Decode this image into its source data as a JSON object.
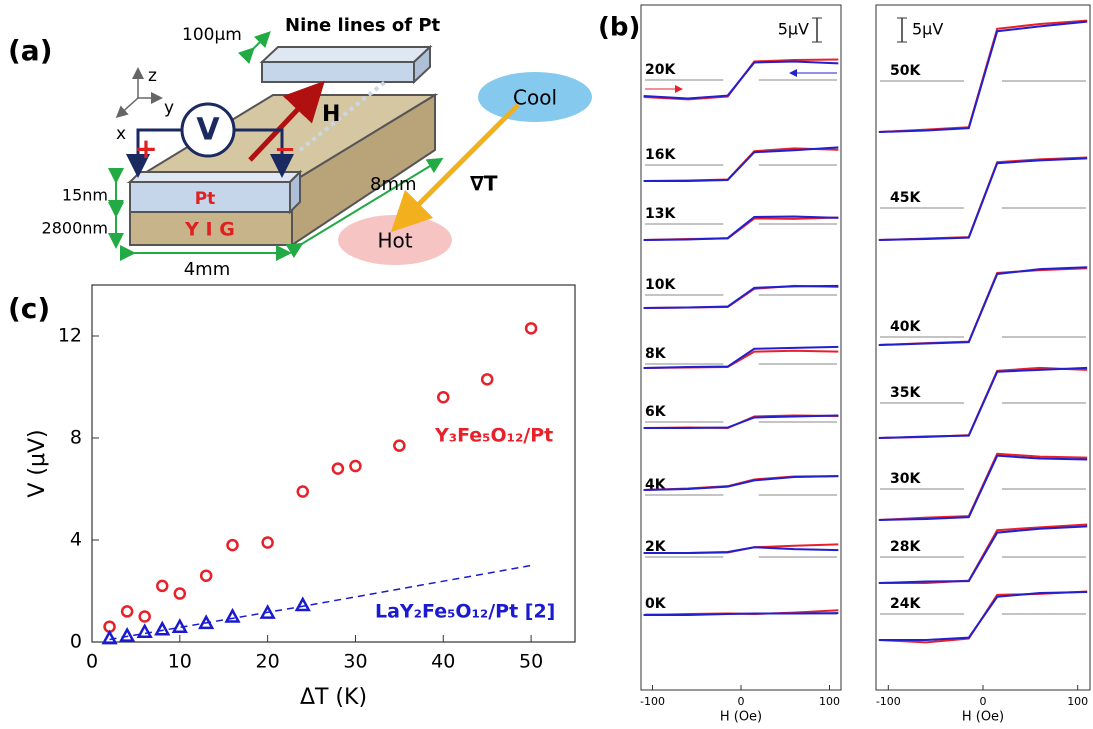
{
  "diagram": {
    "panel_label": "(a)",
    "width": "100μm",
    "pt_lines": "Nine lines of Pt",
    "axis_z": "z",
    "axis_y": "y",
    "axis_x": "x",
    "voltmeter": "V",
    "field": "H",
    "plus": "+",
    "minus": "−",
    "pt_thickness": "15nm",
    "yig_thickness": "2800nm",
    "pt_layer": "Pt",
    "yig_layer": "Y I G",
    "sample_width": "4mm",
    "sample_length": "8mm",
    "gradient": "∇T",
    "cool": "Cool",
    "hot": "Hot"
  },
  "chart_data": [
    {
      "type": "line",
      "panel_label": "(b)",
      "scale_bar": {
        "value": 5,
        "label": "5μV"
      },
      "xlabel": "H (Oe)",
      "x": [
        -110,
        -60,
        -15,
        15,
        60,
        110
      ],
      "xlim": [
        -113,
        113
      ],
      "xticks": [
        -100,
        0,
        100
      ],
      "traces": [
        {
          "label": "20K",
          "series": [
            {
              "color": "#e8202a",
              "values": [
                0,
                -0.5,
                0.1,
                7.4,
                7.7,
                7.8
              ]
            },
            {
              "color": "#2020d0",
              "values": [
                0.2,
                -0.3,
                0.3,
                7.2,
                7.4,
                7.0
              ]
            }
          ]
        },
        {
          "label": "16K",
          "series": [
            {
              "color": "#e8202a",
              "values": [
                0,
                0.1,
                0.3,
                6.2,
                6.8,
                6.5
              ]
            },
            {
              "color": "#2020d0",
              "values": [
                0,
                0,
                0.2,
                6.0,
                6.4,
                7.0
              ]
            }
          ]
        },
        {
          "label": "13K",
          "series": [
            {
              "color": "#e8202a",
              "values": [
                0,
                0.2,
                0.3,
                4.5,
                4.4,
                4.7
              ]
            },
            {
              "color": "#2020d0",
              "values": [
                0,
                0.1,
                0.4,
                4.8,
                4.9,
                4.6
              ]
            }
          ]
        },
        {
          "label": "10K",
          "series": [
            {
              "color": "#e8202a",
              "values": [
                0,
                0.1,
                0.2,
                4.0,
                4.6,
                4.4
              ]
            },
            {
              "color": "#2020d0",
              "values": [
                0,
                0.1,
                0.3,
                4.2,
                4.5,
                4.6
              ]
            }
          ]
        },
        {
          "label": "8K",
          "series": [
            {
              "color": "#e8202a",
              "values": [
                0,
                0.1,
                0.2,
                3.4,
                3.6,
                3.4
              ]
            },
            {
              "color": "#2020d0",
              "values": [
                0,
                0.2,
                0.3,
                4.0,
                4.2,
                4.4
              ]
            }
          ]
        },
        {
          "label": "6K",
          "series": [
            {
              "color": "#e8202a",
              "values": [
                0,
                0.1,
                0,
                2.4,
                2.6,
                2.5
              ]
            },
            {
              "color": "#2020d0",
              "values": [
                0,
                0,
                0.1,
                2.2,
                2.4,
                2.6
              ]
            }
          ]
        },
        {
          "label": "4K",
          "series": [
            {
              "color": "#e8202a",
              "values": [
                0,
                0.3,
                0.8,
                2.2,
                2.8,
                2.9
              ]
            },
            {
              "color": "#2020d0",
              "values": [
                0,
                0.2,
                0.7,
                2.0,
                2.7,
                2.9
              ]
            }
          ]
        },
        {
          "label": "2K",
          "series": [
            {
              "color": "#e8202a",
              "values": [
                0,
                0,
                0.1,
                1.2,
                1.5,
                1.8
              ]
            },
            {
              "color": "#2020d0",
              "values": [
                0,
                0,
                0.2,
                1.2,
                0.8,
                0.6
              ]
            }
          ]
        },
        {
          "label": "0K",
          "series": [
            {
              "color": "#e8202a",
              "values": [
                0,
                0.2,
                0.3,
                0.2,
                0.5,
                1.0
              ]
            },
            {
              "color": "#2020d0",
              "values": [
                0,
                0,
                0.2,
                0.3,
                0.3,
                0.4
              ]
            }
          ]
        }
      ]
    },
    {
      "type": "line",
      "scale_bar": {
        "value": 5,
        "label": "5μV"
      },
      "xlabel": "H (Oe)",
      "x": [
        -110,
        -60,
        -15,
        15,
        60,
        110
      ],
      "xlim": [
        -113,
        113
      ],
      "xticks": [
        -100,
        0,
        100
      ],
      "traces": [
        {
          "label": "50K",
          "series": [
            {
              "color": "#e8202a",
              "values": [
                0,
                0.5,
                1.0,
                21.5,
                22.5,
                23.2
              ]
            },
            {
              "color": "#2020d0",
              "values": [
                0,
                0.3,
                0.8,
                21.0,
                22.0,
                23.0
              ]
            }
          ]
        },
        {
          "label": "45K",
          "series": [
            {
              "color": "#e8202a",
              "values": [
                0,
                0.3,
                0.6,
                16.2,
                16.8,
                17.2
              ]
            },
            {
              "color": "#2020d0",
              "values": [
                0,
                0.2,
                0.5,
                16.0,
                16.6,
                17.0
              ]
            }
          ]
        },
        {
          "label": "40K",
          "series": [
            {
              "color": "#e8202a",
              "values": [
                0,
                0.4,
                0.7,
                15.0,
                15.6,
                16.0
              ]
            },
            {
              "color": "#2020d0",
              "values": [
                0,
                0.3,
                0.6,
                14.8,
                15.8,
                16.2
              ]
            }
          ]
        },
        {
          "label": "35K",
          "series": [
            {
              "color": "#e8202a",
              "values": [
                0,
                0.2,
                0.6,
                14.0,
                14.6,
                14.2
              ]
            },
            {
              "color": "#2020d0",
              "values": [
                0,
                0.3,
                0.5,
                13.8,
                14.2,
                14.6
              ]
            }
          ]
        },
        {
          "label": "30K",
          "series": [
            {
              "color": "#e8202a",
              "values": [
                0,
                0.5,
                0.8,
                13.8,
                13.2,
                13.0
              ]
            },
            {
              "color": "#2020d0",
              "values": [
                0,
                0.2,
                0.6,
                13.4,
                12.8,
                12.6
              ]
            }
          ]
        },
        {
          "label": "28K",
          "series": [
            {
              "color": "#e8202a",
              "values": [
                0,
                0,
                0.5,
                11.0,
                11.6,
                12.2
              ]
            },
            {
              "color": "#2020d0",
              "values": [
                0,
                0.3,
                0.4,
                10.5,
                11.3,
                11.8
              ]
            }
          ]
        },
        {
          "label": "24K",
          "series": [
            {
              "color": "#e8202a",
              "values": [
                0,
                -0.5,
                0.3,
                9.4,
                9.6,
                10.1
              ]
            },
            {
              "color": "#2020d0",
              "values": [
                0,
                0,
                0.5,
                9.0,
                9.8,
                10.0
              ]
            }
          ]
        }
      ]
    },
    {
      "type": "scatter",
      "panel_label": "(c)",
      "xlabel": "ΔT (K)",
      "ylabel": "V (μV)",
      "xlim": [
        0,
        55
      ],
      "ylim": [
        0,
        14
      ],
      "xticks": [
        0,
        10,
        20,
        30,
        40,
        50
      ],
      "yticks": [
        0,
        4,
        8,
        12
      ],
      "series": [
        {
          "name": "Y₃Fe₅O₁₂/Pt",
          "color": "#e8202a",
          "marker": "circle",
          "x": [
            2,
            4,
            6,
            8,
            10,
            13,
            16,
            20,
            24,
            28,
            30,
            35,
            40,
            45,
            50
          ],
          "values": [
            0.6,
            1.2,
            1.0,
            2.2,
            1.9,
            2.6,
            3.8,
            3.9,
            5.9,
            6.8,
            6.9,
            7.7,
            9.6,
            10.3,
            12.3
          ]
        },
        {
          "name": "LaY₂Fe₅O₁₂/Pt [2]",
          "color": "#1a1ad0",
          "marker": "triangle",
          "x": [
            2,
            4,
            6,
            8,
            10,
            13,
            16,
            20,
            24
          ],
          "values": [
            0.15,
            0.25,
            0.4,
            0.5,
            0.6,
            0.75,
            1.0,
            1.15,
            1.45
          ]
        },
        {
          "color": "#1a1ad0",
          "marker": "dashed",
          "x": [
            2,
            24,
            50
          ],
          "values": [
            0.1,
            1.4,
            3.0
          ]
        }
      ]
    }
  ]
}
